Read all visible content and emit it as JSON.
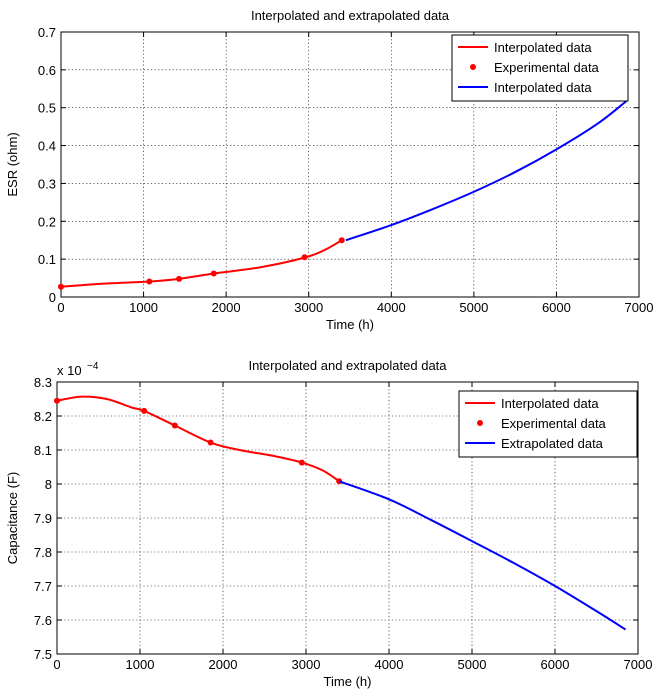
{
  "chart_data": [
    {
      "type": "line",
      "title": "Interpolated and extrapolated data",
      "xlabel": "Time (h)",
      "ylabel": "ESR (ohm)",
      "xlim": [
        0,
        7000
      ],
      "ylim": [
        0,
        0.7
      ],
      "xticks": [
        0,
        1000,
        2000,
        3000,
        4000,
        5000,
        6000,
        7000
      ],
      "yticks": [
        0,
        0.1,
        0.2,
        0.3,
        0.4,
        0.5,
        0.6,
        0.7
      ],
      "grid": true,
      "legend_position": "top-right",
      "colors": {
        "interpolated": "#ff0000",
        "experimental": "#ff0000",
        "extrapolated": "#0000ff"
      },
      "series": [
        {
          "name": "Interpolated data",
          "style": "line",
          "color": "#ff0000",
          "x": [
            0,
            500,
            1070,
            1430,
            1850,
            2400,
            2950,
            3200,
            3400
          ],
          "y": [
            0.027,
            0.035,
            0.041,
            0.048,
            0.062,
            0.078,
            0.104,
            0.125,
            0.15
          ]
        },
        {
          "name": "Experimental data",
          "style": "markers",
          "color": "#ff0000",
          "x": [
            0,
            1070,
            1430,
            1850,
            2950,
            3400
          ],
          "y": [
            0.027,
            0.041,
            0.048,
            0.062,
            0.105,
            0.15
          ]
        },
        {
          "name": "Interpolated data",
          "style": "line",
          "color": "#0000ff",
          "x": [
            3450,
            4000,
            4500,
            5000,
            5500,
            6000,
            6500,
            6850
          ],
          "y": [
            0.15,
            0.19,
            0.232,
            0.278,
            0.33,
            0.39,
            0.458,
            0.518
          ]
        }
      ]
    },
    {
      "type": "line",
      "title": "Interpolated and extrapolated data",
      "xlabel": "Time (h)",
      "ylabel": "Capacitance (F)",
      "yscale_label": "x 10",
      "yscale_exponent": "−4",
      "xlim": [
        0,
        7000
      ],
      "ylim": [
        7.5,
        8.3
      ],
      "xticks": [
        0,
        1000,
        2000,
        3000,
        4000,
        5000,
        6000,
        7000
      ],
      "yticks": [
        7.5,
        7.6,
        7.7,
        7.8,
        7.9,
        8,
        8.1,
        8.2,
        8.3
      ],
      "grid": true,
      "legend_position": "top-right",
      "colors": {
        "interpolated": "#ff0000",
        "experimental": "#ff0000",
        "extrapolated": "#0000ff"
      },
      "series": [
        {
          "name": "Interpolated data",
          "style": "line",
          "color": "#ff0000",
          "x": [
            0,
            300,
            600,
            900,
            1050,
            1420,
            1850,
            2200,
            2600,
            2950,
            3200,
            3400
          ],
          "y": [
            8.245,
            8.257,
            8.25,
            8.225,
            8.215,
            8.172,
            8.122,
            8.1,
            8.083,
            8.063,
            8.04,
            8.008
          ]
        },
        {
          "name": "Experimental data",
          "style": "markers",
          "color": "#ff0000",
          "x": [
            0,
            1050,
            1420,
            1850,
            2950,
            3400
          ],
          "y": [
            8.245,
            8.215,
            8.172,
            8.122,
            8.063,
            8.008
          ]
        },
        {
          "name": "Extrapolated data",
          "style": "line",
          "color": "#0000ff",
          "x": [
            3400,
            4000,
            4500,
            5000,
            5500,
            6000,
            6500,
            6850
          ],
          "y": [
            8.008,
            7.955,
            7.895,
            7.832,
            7.768,
            7.7,
            7.626,
            7.572
          ]
        }
      ]
    }
  ]
}
